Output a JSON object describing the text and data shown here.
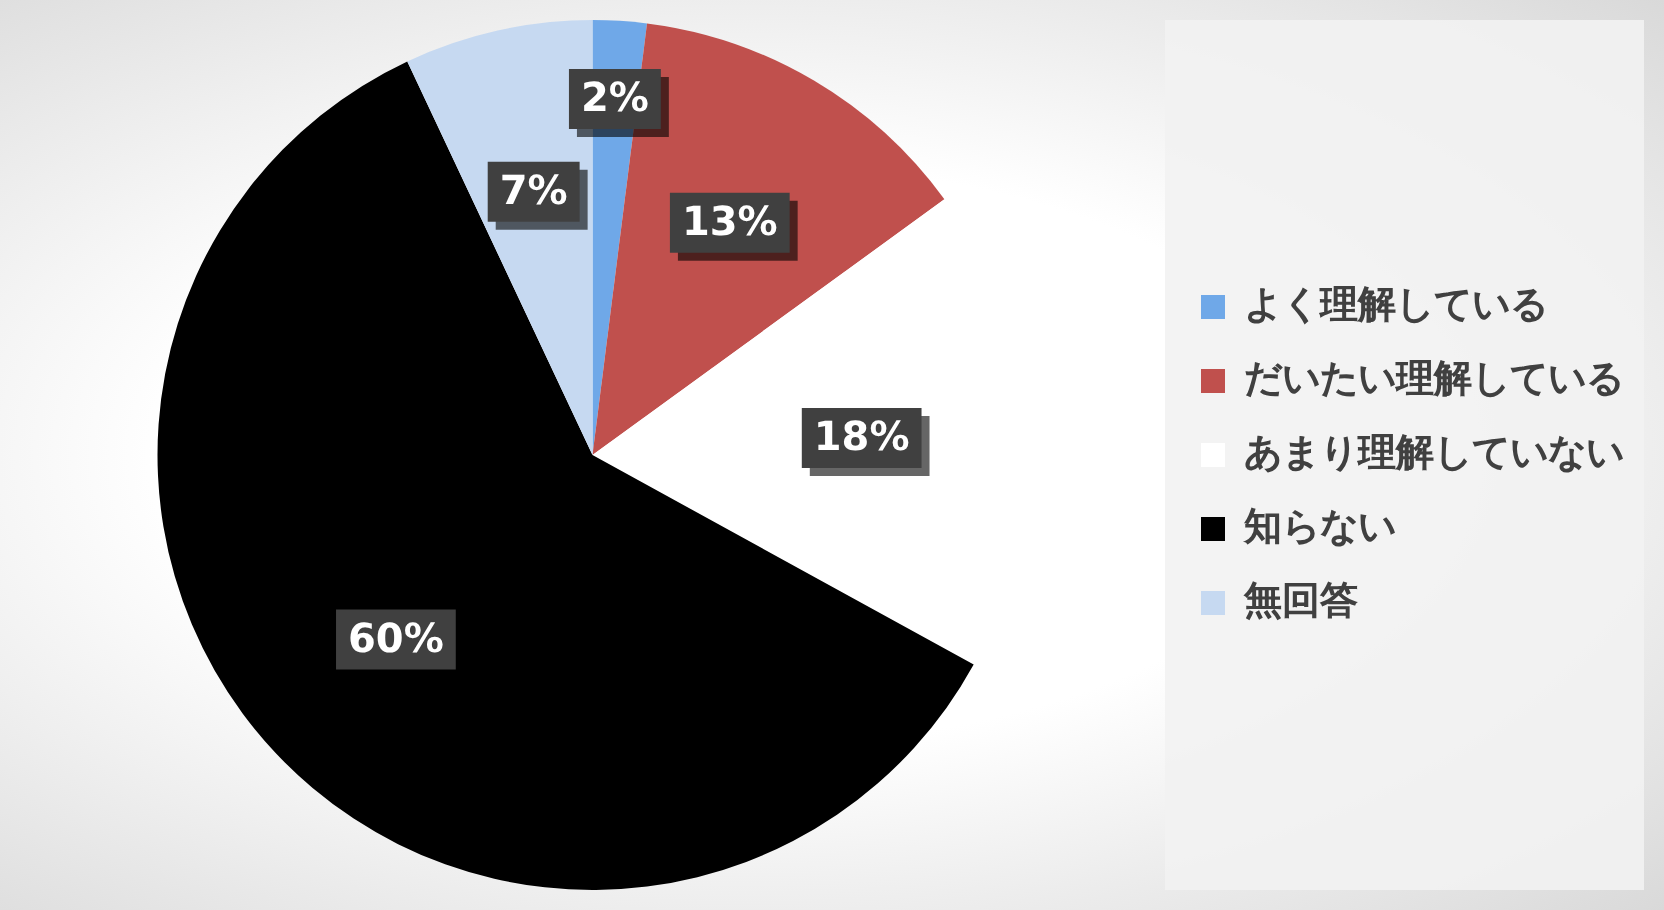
{
  "chart_data": {
    "type": "pie",
    "categories": [
      "よく理解している",
      "だいたい理解している",
      "あまり理解していない",
      "知らない",
      "無回答"
    ],
    "values": [
      2,
      13,
      18,
      60,
      7
    ],
    "colors": [
      "#6fa8e8",
      "#c0504d",
      "#ffffff",
      "#000000",
      "#c6d9f1"
    ],
    "value_labels": [
      "2%",
      "13%",
      "18%",
      "60%",
      "7%"
    ],
    "legend": "right"
  }
}
